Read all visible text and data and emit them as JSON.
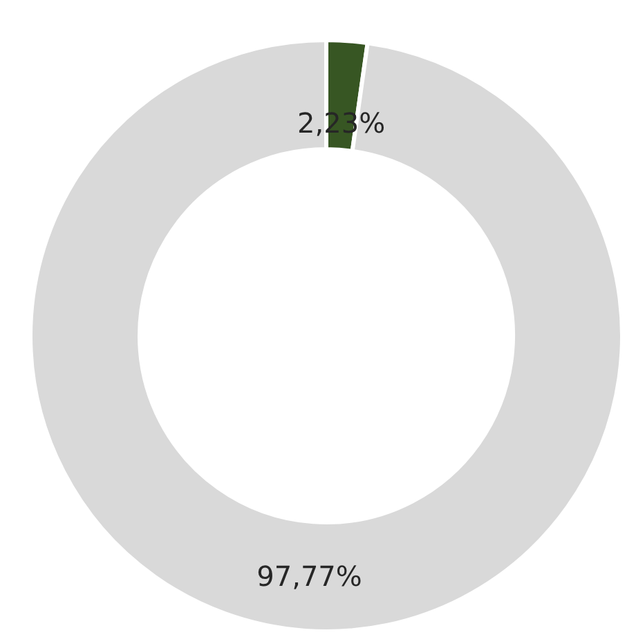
{
  "chart_data": {
    "type": "donut",
    "categories": [
      null,
      null
    ],
    "values": [
      2.23,
      97.77
    ],
    "colors": [
      "#375623",
      "#d9d9d9"
    ],
    "value_labels": [
      "2,23%",
      "97,77%"
    ]
  }
}
